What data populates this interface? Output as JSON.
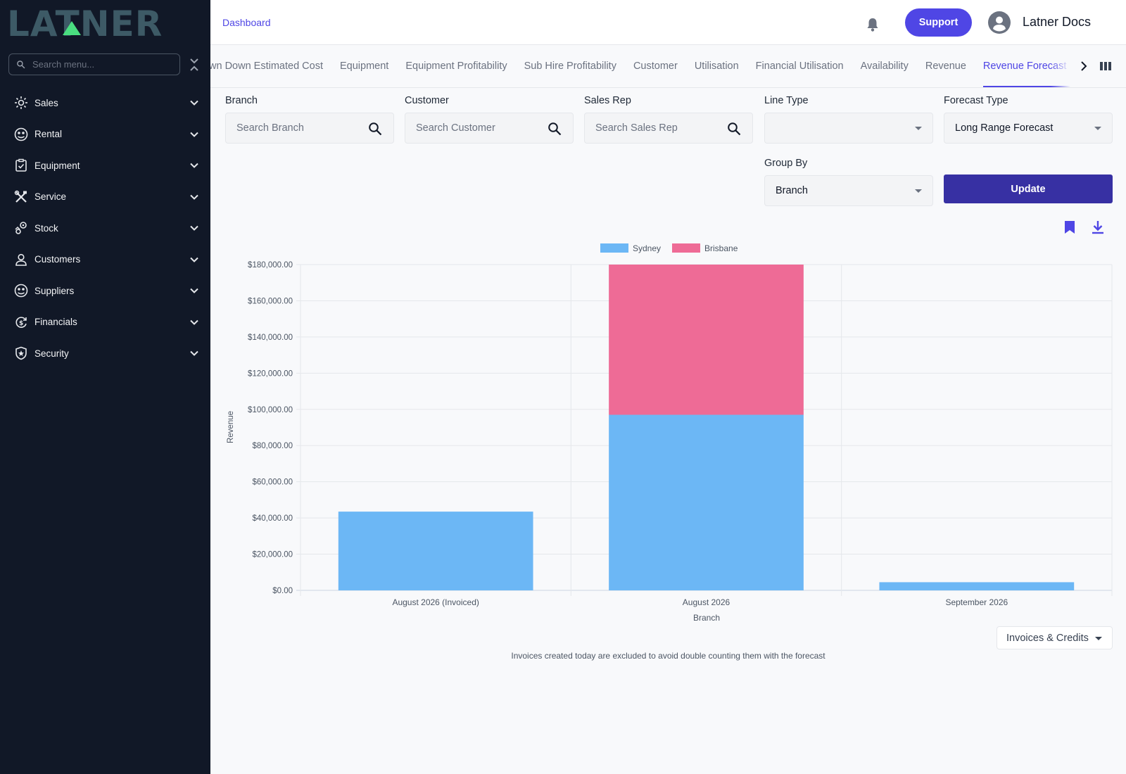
{
  "sidebar": {
    "logo_text": "LATNER",
    "search_placeholder": "Search menu...",
    "items": [
      {
        "label": "Sales",
        "icon": "sales-icon"
      },
      {
        "label": "Rental",
        "icon": "rental-icon"
      },
      {
        "label": "Equipment",
        "icon": "equipment-icon"
      },
      {
        "label": "Service",
        "icon": "service-icon"
      },
      {
        "label": "Stock",
        "icon": "stock-icon"
      },
      {
        "label": "Customers",
        "icon": "customers-icon"
      },
      {
        "label": "Suppliers",
        "icon": "suppliers-icon"
      },
      {
        "label": "Financials",
        "icon": "financials-icon"
      },
      {
        "label": "Security",
        "icon": "security-icon"
      }
    ]
  },
  "header": {
    "breadcrumb": "Dashboard",
    "support_label": "Support",
    "user_name": "Latner Docs"
  },
  "tabs": [
    {
      "label": "Breakdown Down Estimated Cost",
      "active": false
    },
    {
      "label": "Equipment",
      "active": false
    },
    {
      "label": "Equipment Profitability",
      "active": false
    },
    {
      "label": "Sub Hire Profitability",
      "active": false
    },
    {
      "label": "Customer",
      "active": false
    },
    {
      "label": "Utilisation",
      "active": false
    },
    {
      "label": "Financial Utilisation",
      "active": false
    },
    {
      "label": "Availability",
      "active": false
    },
    {
      "label": "Revenue",
      "active": false
    },
    {
      "label": "Revenue Forecast",
      "active": true
    }
  ],
  "filters": {
    "branch": {
      "label": "Branch",
      "placeholder": "Search Branch"
    },
    "customer": {
      "label": "Customer",
      "placeholder": "Search Customer"
    },
    "sales_rep": {
      "label": "Sales Rep",
      "placeholder": "Search Sales Rep"
    },
    "line_type": {
      "label": "Line Type",
      "value": ""
    },
    "forecast_type": {
      "label": "Forecast Type",
      "value": "Long Range Forecast"
    },
    "group_by": {
      "label": "Group By",
      "value": "Branch"
    },
    "update_label": "Update"
  },
  "chart_data": {
    "type": "bar",
    "stacked": true,
    "categories": [
      "August 2026 (Invoiced)",
      "August 2026",
      "September 2026"
    ],
    "series": [
      {
        "name": "Sydney",
        "color": "#6cb7f5",
        "values": [
          43500,
          97000,
          4500
        ]
      },
      {
        "name": "Brisbane",
        "color": "#ee6b96",
        "values": [
          0,
          83000,
          0
        ]
      }
    ],
    "ylabel": "Revenue",
    "xlabel": "Branch",
    "ylim": [
      0,
      180000
    ],
    "yticks": [
      "$0.00",
      "$20,000.00",
      "$40,000.00",
      "$60,000.00",
      "$80,000.00",
      "$100,000.00",
      "$120,000.00",
      "$140,000.00",
      "$160,000.00",
      "$180,000.00"
    ],
    "legend_position": "top-center",
    "grid": true
  },
  "invoices_dropdown": "Invoices & Credits",
  "footnote": "Invoices created today are excluded to avoid double counting them with the forecast"
}
